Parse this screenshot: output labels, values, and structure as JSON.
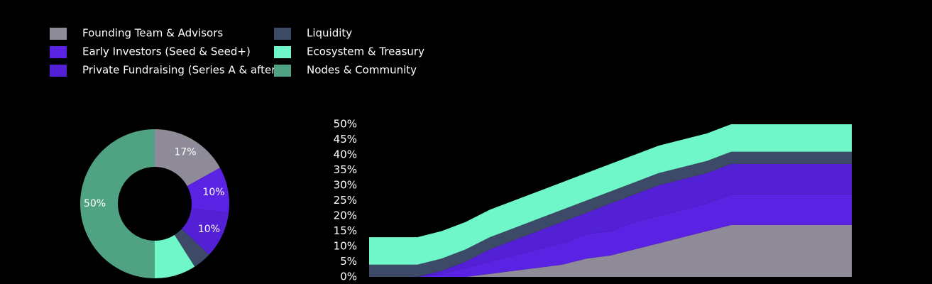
{
  "chart_data": [
    {
      "type": "pie",
      "categories": [
        "Founding Team & Advisors",
        "Early Investors (Seed & Seed+)",
        "Private Fundraising (Series A & after)",
        "Liquidity",
        "Ecosystem & Treasury",
        "Nodes & Community"
      ],
      "values": [
        17,
        10,
        10,
        4,
        9,
        50
      ],
      "value_labels": [
        "17%",
        "10%",
        "10%",
        null,
        null,
        "50%"
      ],
      "colors": [
        "#8f8b98",
        "#5a22e2",
        "#5420d6",
        "#3c4a68",
        "#6ff6c9",
        "#4fa383"
      ],
      "legend": "top-left"
    },
    {
      "type": "area",
      "stacked": true,
      "categories": [
        null,
        null,
        null,
        null,
        null,
        null,
        null,
        null,
        null,
        null,
        null,
        null,
        null,
        null,
        null,
        null,
        null,
        null,
        null,
        null,
        null
      ],
      "series": [
        {
          "color": "#8f8b98",
          "values": [
            0,
            0,
            0,
            0,
            0,
            1,
            2,
            3,
            4,
            6,
            7,
            9,
            11,
            13,
            15,
            17,
            17,
            17,
            17,
            17,
            17
          ]
        },
        {
          "color": "#5a22e2",
          "values": [
            0,
            0,
            0,
            1,
            3,
            4,
            5,
            6,
            7,
            8,
            8,
            9,
            9,
            9,
            9,
            10,
            10,
            10,
            10,
            10,
            10
          ]
        },
        {
          "color": "#5420d6",
          "values": [
            0,
            0,
            0,
            1,
            2,
            4,
            5,
            6,
            7,
            7,
            9,
            9,
            10,
            10,
            10,
            10,
            10,
            10,
            10,
            10,
            10
          ]
        },
        {
          "color": "#3c4a68",
          "values": [
            4,
            4,
            4,
            4,
            4,
            4,
            4,
            4,
            4,
            4,
            4,
            4,
            4,
            4,
            4,
            4,
            4,
            4,
            4,
            4,
            4
          ]
        },
        {
          "color": "#6ff6c9",
          "values": [
            9,
            9,
            9,
            9,
            9,
            9,
            9,
            9,
            9,
            9,
            9,
            9,
            9,
            9,
            9,
            9,
            9,
            9,
            9,
            9,
            9
          ]
        }
      ],
      "ylim": [
        0,
        50
      ],
      "yticks": [
        {
          "value": 0,
          "label": "0%"
        },
        {
          "value": 5,
          "label": "5%"
        },
        {
          "value": 10,
          "label": "10%"
        },
        {
          "value": 15,
          "label": "15%"
        },
        {
          "value": 20,
          "label": "20%"
        },
        {
          "value": 25,
          "label": "25%"
        },
        {
          "value": 30,
          "label": "30%"
        },
        {
          "value": 35,
          "label": "35%"
        },
        {
          "value": 40,
          "label": "40%"
        },
        {
          "value": 45,
          "label": "45%"
        },
        {
          "value": 50,
          "label": "50%"
        }
      ],
      "grid": false
    }
  ]
}
